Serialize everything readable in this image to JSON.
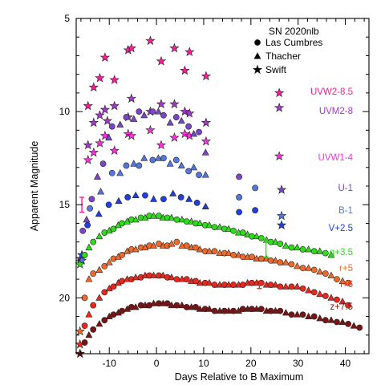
{
  "chart_data": {
    "type": "scatter",
    "title": "SN 2020nlb",
    "xlabel": "Days Relative to B Maximum",
    "ylabel": "Apparent Magnitude",
    "xlim": [
      -17,
      45
    ],
    "ylim": [
      23,
      5
    ],
    "y_inverted": true,
    "x_ticks": [
      -10,
      0,
      10,
      20,
      30,
      40
    ],
    "y_ticks": [
      5,
      10,
      15,
      20
    ],
    "grid": false,
    "legend_position": "top-right",
    "legend": [
      {
        "label": "Las Cumbres",
        "marker": "circle"
      },
      {
        "label": "Thacher",
        "marker": "triangle"
      },
      {
        "label": "Swift",
        "marker": "star"
      }
    ],
    "series": [
      {
        "name": "UVW2-8.5",
        "color": "#ff1a9c",
        "marker": "star",
        "x": [
          -14.5,
          -13.3,
          -12.0,
          -10.9,
          -8.9,
          -6.0,
          -5.3,
          -1.3,
          1.0,
          3.8,
          6.0,
          7.0,
          10.5,
          26.0
        ],
        "y": [
          9.7,
          8.7,
          8.2,
          7.1,
          8.3,
          6.7,
          6.6,
          6.2,
          7.3,
          6.6,
          7.8,
          6.8,
          8.1,
          9.0
        ]
      },
      {
        "name": "UVM2-8",
        "color": "#a338c9",
        "marker": "star",
        "x": [
          -14.5,
          -13.3,
          -12.0,
          -10.9,
          -10.4,
          -8.9,
          -6.0,
          -5.3,
          -1.3,
          1.0,
          3.8,
          6.0,
          7.0,
          10.5,
          26.0
        ],
        "y": [
          11.8,
          10.6,
          10.2,
          9.9,
          10.5,
          9.7,
          10.3,
          9.3,
          10.0,
          9.6,
          9.6,
          10.0,
          10.1,
          10.6,
          9.8
        ]
      },
      {
        "name": "UVW1-4",
        "color": "#ff2fe0",
        "marker": "star",
        "x": [
          -14.5,
          -13.3,
          -12.0,
          -10.9,
          -8.9,
          -6.0,
          -5.3,
          -1.3,
          1.0,
          3.8,
          6.0,
          7.0,
          10.5,
          26.0
        ],
        "y": [
          12.6,
          12.2,
          11.7,
          11.3,
          12.1,
          11.2,
          11.3,
          11.0,
          11.8,
          11.4,
          11.2,
          11.3,
          11.6,
          12.4
        ]
      },
      {
        "name": "U-1",
        "color": "#7a45c6",
        "marker": "mixed",
        "x": [
          -16.1,
          -15.6,
          -14.8,
          -13.7,
          -12.5,
          -11.3,
          -10.1,
          -9.4,
          -7.7,
          -6.4,
          -4.8,
          -3.7,
          -2.6,
          -0.8,
          0.4,
          1.5,
          2.9,
          4.2,
          5.3,
          6.8,
          7.9,
          9.0,
          10.4,
          17.5,
          26.5
        ],
        "y": [
          17.9,
          16.4,
          15.8,
          14.7,
          13.5,
          12.8,
          11.4,
          10.8,
          10.7,
          10.3,
          10.4,
          10.0,
          10.2,
          10.0,
          10.0,
          10.2,
          10.6,
          10.3,
          10.5,
          10.8,
          11.2,
          11.1,
          12.2,
          13.5,
          14.2
        ]
      },
      {
        "name": "B-1",
        "color": "#5577dd",
        "marker": "mixed",
        "x": [
          -15.8,
          -14.1,
          -11.8,
          -9.4,
          -7.7,
          -6.4,
          -4.8,
          -3.7,
          -2.6,
          -0.8,
          0.4,
          1.5,
          2.9,
          4.2,
          5.3,
          6.8,
          7.9,
          9.0,
          10.4,
          17.5,
          20.9,
          26.5
        ],
        "y": [
          18.0,
          15.2,
          14.3,
          13.3,
          13.3,
          12.9,
          12.8,
          12.9,
          12.5,
          12.6,
          12.5,
          12.5,
          12.8,
          12.6,
          12.9,
          13.2,
          13.0,
          13.4,
          13.4,
          14.6,
          14.1,
          15.6
        ]
      },
      {
        "name": "V+2.5",
        "color": "#1f3fe0",
        "marker": "mixed",
        "x": [
          -15.8,
          -14.6,
          -12.2,
          -10.1,
          -8.0,
          -6.1,
          -4.4,
          -2.4,
          -0.6,
          1.5,
          3.5,
          5.2,
          6.9,
          8.6,
          10.4,
          17.5,
          20.9,
          26.5
        ],
        "y": [
          17.7,
          16.1,
          15.5,
          15.0,
          14.8,
          14.6,
          14.5,
          14.5,
          14.7,
          14.7,
          14.4,
          14.6,
          14.7,
          14.9,
          15.1,
          15.4,
          15.3,
          16.1
        ]
      },
      {
        "name": "g+3.5",
        "color": "#2edc1a",
        "marker": "mixed",
        "x": [
          -16.2,
          -15.2,
          -14.3,
          -13.4,
          -12.1,
          -11.0,
          -10.0,
          -9.1,
          -8.1,
          -7.3,
          -6.2,
          -5.3,
          -4.4,
          -3.3,
          -2.4,
          -1.5,
          -0.6,
          0.5,
          1.4,
          2.3,
          3.2,
          4.3,
          5.4,
          6.4,
          7.4,
          8.3,
          9.2,
          10.3,
          11.2,
          12.3,
          13.4,
          14.4,
          15.3,
          16.3,
          17.4,
          18.3,
          19.3,
          20.2,
          21.2,
          22.2,
          23.3,
          24.2,
          25.2,
          26.2,
          27.4,
          28.6,
          29.8,
          31.0,
          32.2,
          33.4,
          34.6,
          35.8,
          37.0
        ],
        "y": [
          18.2,
          17.7,
          17.3,
          17.0,
          16.7,
          16.5,
          16.4,
          16.3,
          16.1,
          16.0,
          15.9,
          15.8,
          15.8,
          15.7,
          15.7,
          15.6,
          15.6,
          15.6,
          15.7,
          15.7,
          15.7,
          15.8,
          15.8,
          15.9,
          15.9,
          16.0,
          16.0,
          16.1,
          16.1,
          16.2,
          16.2,
          16.3,
          16.3,
          16.4,
          16.5,
          16.5,
          16.6,
          16.7,
          16.7,
          16.8,
          16.9,
          17.0,
          17.0,
          17.1,
          17.2,
          17.3,
          17.3,
          17.4,
          17.4,
          17.5,
          17.5,
          17.6,
          17.7
        ]
      },
      {
        "name": "r+5",
        "color": "#ee6a2a",
        "marker": "mixed",
        "x": [
          -16.2,
          -15.2,
          -14.3,
          -13.4,
          -12.1,
          -11.0,
          -10.0,
          -9.1,
          -8.1,
          -7.3,
          -6.2,
          -5.3,
          -4.4,
          -3.3,
          -2.4,
          -1.5,
          -0.6,
          0.5,
          1.4,
          2.3,
          3.2,
          4.3,
          5.4,
          6.4,
          7.4,
          8.3,
          9.2,
          10.3,
          11.2,
          12.3,
          13.4,
          14.4,
          15.3,
          16.3,
          17.4,
          18.3,
          19.3,
          20.2,
          21.2,
          22.2,
          23.3,
          24.2,
          25.2,
          26.2,
          27.4,
          28.6,
          29.8,
          31.0,
          32.2,
          33.4,
          34.6,
          35.8,
          37.0,
          38.2,
          39.4,
          40.6
        ],
        "y": [
          21.8,
          20.0,
          19.0,
          18.7,
          18.5,
          18.3,
          18.1,
          17.9,
          17.8,
          17.7,
          17.5,
          17.4,
          17.4,
          17.3,
          17.3,
          17.2,
          17.2,
          17.1,
          17.2,
          17.2,
          17.1,
          17.0,
          17.2,
          17.2,
          17.3,
          17.3,
          17.4,
          17.5,
          17.5,
          17.5,
          17.6,
          17.6,
          17.6,
          17.7,
          17.7,
          17.8,
          17.8,
          17.8,
          17.9,
          17.9,
          17.9,
          18.0,
          18.0,
          18.1,
          18.1,
          18.2,
          18.3,
          18.4,
          18.4,
          18.5,
          18.6,
          18.7,
          18.8,
          19.0,
          19.1,
          19.2
        ]
      },
      {
        "name": "i+6",
        "color": "#e8281e",
        "marker": "mixed",
        "x": [
          -16.2,
          -15.2,
          -14.3,
          -13.4,
          -12.1,
          -11.0,
          -10.0,
          -9.1,
          -8.1,
          -7.3,
          -6.2,
          -5.3,
          -4.4,
          -3.3,
          -2.4,
          -1.5,
          -0.6,
          0.5,
          1.4,
          2.3,
          3.2,
          4.3,
          5.4,
          6.4,
          7.4,
          8.3,
          9.2,
          10.3,
          11.2,
          12.3,
          13.4,
          14.4,
          15.3,
          16.3,
          17.4,
          18.3,
          19.3,
          20.2,
          21.2,
          22.2,
          23.3,
          24.2,
          25.2,
          26.2,
          27.4,
          28.6,
          29.8,
          31.0,
          32.2,
          33.4,
          34.6,
          35.8,
          37.0,
          38.2,
          39.4,
          40.6
        ],
        "y": [
          22.5,
          21.5,
          20.9,
          20.4,
          20.0,
          19.7,
          19.5,
          19.4,
          19.2,
          19.1,
          19.0,
          19.0,
          18.9,
          18.9,
          18.8,
          18.8,
          18.8,
          18.8,
          18.8,
          18.9,
          18.9,
          19.0,
          19.0,
          19.0,
          19.1,
          19.1,
          19.2,
          19.2,
          19.2,
          19.3,
          19.3,
          19.3,
          19.3,
          19.3,
          19.3,
          19.3,
          19.2,
          19.2,
          19.2,
          19.2,
          19.3,
          19.3,
          19.3,
          19.4,
          19.4,
          19.4,
          19.4,
          19.5,
          19.6,
          19.7,
          19.8,
          19.9,
          20.0,
          20.1,
          20.2,
          20.4
        ]
      },
      {
        "name": "z+7.5",
        "color": "#7a1414",
        "marker": "mixed",
        "x": [
          -16.2,
          -15.2,
          -14.3,
          -13.4,
          -12.1,
          -11.0,
          -10.0,
          -9.1,
          -8.1,
          -7.3,
          -6.2,
          -5.3,
          -4.4,
          -3.3,
          -2.4,
          -1.5,
          -0.6,
          0.5,
          1.4,
          2.3,
          3.2,
          4.3,
          5.4,
          6.4,
          7.4,
          8.3,
          9.2,
          10.3,
          11.2,
          12.3,
          13.4,
          14.4,
          15.3,
          16.3,
          17.4,
          18.3,
          19.3,
          20.2,
          21.2,
          22.2,
          23.3,
          24.2,
          25.2,
          26.2,
          27.4,
          28.6,
          29.8,
          31.0,
          32.2,
          33.4,
          34.6,
          35.8,
          37.0,
          38.2,
          39.4,
          40.6,
          41.8,
          43.0
        ],
        "y": [
          23.0,
          22.4,
          22.0,
          21.7,
          21.4,
          21.2,
          21.0,
          20.9,
          20.8,
          20.7,
          20.6,
          20.5,
          20.5,
          20.4,
          20.4,
          20.4,
          20.3,
          20.3,
          20.3,
          20.3,
          20.4,
          20.4,
          20.4,
          20.5,
          20.5,
          20.5,
          20.6,
          20.6,
          20.6,
          20.7,
          20.7,
          20.7,
          20.7,
          20.7,
          20.7,
          20.6,
          20.6,
          20.6,
          20.6,
          20.6,
          20.7,
          20.7,
          20.7,
          20.7,
          20.8,
          20.9,
          20.9,
          20.9,
          21.0,
          21.0,
          21.1,
          21.2,
          21.2,
          21.3,
          21.3,
          21.4,
          21.5,
          21.6
        ]
      }
    ],
    "error_bars": [
      {
        "series": "V+2.5",
        "x": -15.8,
        "y": 15.0,
        "yerr": 0.4,
        "color": "#ff1a9c"
      },
      {
        "series": "g+3.5",
        "x": 23.2,
        "y": 17.4,
        "yerr": 0.4,
        "color": "#2edc1a"
      },
      {
        "series": "i+6",
        "x": 21.8,
        "y": 19.3,
        "yerr": 0.2,
        "color": "#e8281e"
      }
    ]
  }
}
